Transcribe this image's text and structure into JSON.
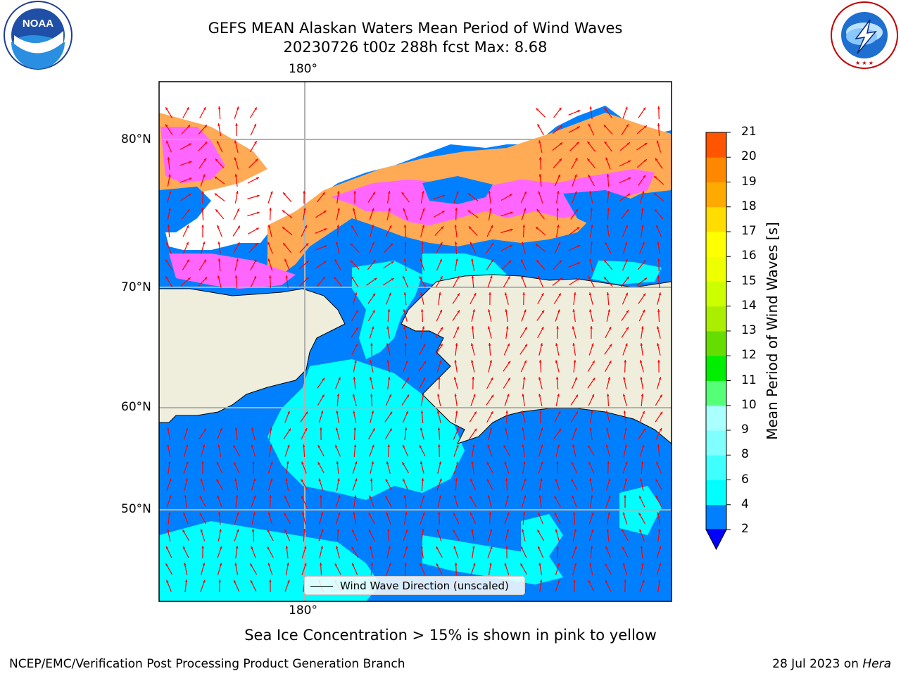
{
  "title": {
    "line1": "GEFS MEAN Alaskan Waters Mean Period of Wind Waves",
    "line2": "20230726 t00z 288h fcst   Max: 8.68"
  },
  "logos": {
    "left": "NOAA",
    "left_ring": "NATIONAL OCEANIC AND ATMOSPHERIC ADMINISTRATION · U.S. DEPARTMENT OF COMMERCE",
    "right_ring": "NATIONAL WEATHER SERVICE"
  },
  "map": {
    "top_lon_label": "180°",
    "bottom_lon_label": "180°",
    "lat_labels": [
      "80°N",
      "70°N",
      "60°N",
      "50°N"
    ],
    "legend_text": "Wind Wave Direction (unscaled)",
    "colors": {
      "land": "#efeedd",
      "water_2_4": "#0080ff",
      "water_4_6": "#00ffff",
      "ice_pink": "#ff66ff",
      "ice_orange": "#ffaa55",
      "arrow": "#ff0000",
      "grid": "#b0b0b0"
    }
  },
  "colorbar": {
    "label": "Mean Period of Wind Waves [s]",
    "ticks": [
      "2",
      "4",
      "6",
      "8",
      "9",
      "10",
      "11",
      "12",
      "13",
      "14",
      "15",
      "16",
      "17",
      "18",
      "19",
      "20",
      "21"
    ],
    "colors": [
      "#0080ff",
      "#00ffff",
      "#40ffff",
      "#80ffff",
      "#aaffff",
      "#55ff77",
      "#00ee00",
      "#66dd00",
      "#aaee00",
      "#ccff00",
      "#eeff00",
      "#ffff00",
      "#ffdd00",
      "#ffaa00",
      "#ff8800",
      "#ff5500",
      "#ff2200",
      "#ff0000"
    ],
    "extend_color": "#0000ff"
  },
  "caption": "Sea Ice Concentration > 15% is shown in pink to yellow",
  "footer": {
    "left": "NCEP/EMC/Verification Post Processing Product Generation Branch",
    "right_date": "28 Jul 2023 on ",
    "right_machine": "Hera"
  }
}
